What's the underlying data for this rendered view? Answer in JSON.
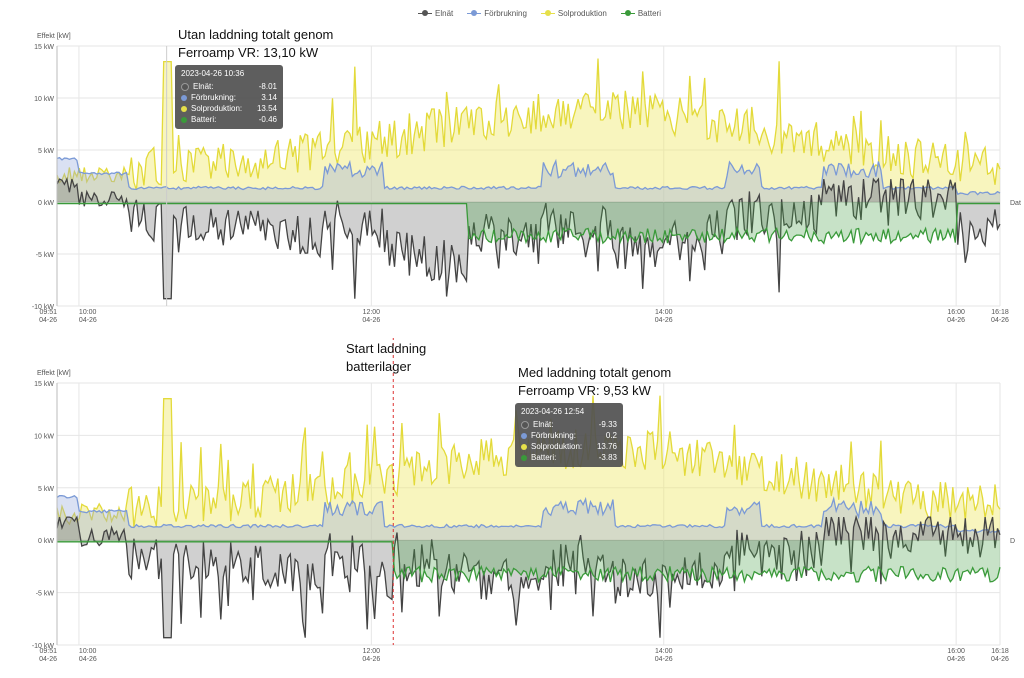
{
  "legend": [
    {
      "name": "Elnät",
      "color": "#555555"
    },
    {
      "name": "Förbrukning",
      "color": "#7b9ad6"
    },
    {
      "name": "Solproduktion",
      "color": "#e6e04a"
    },
    {
      "name": "Batteri",
      "color": "#3a9a3a"
    }
  ],
  "annotations": {
    "top_line1": "Utan laddning  totalt genom",
    "top_line2": "Ferroamp VR: 13,10 kW",
    "start_line1": "Start laddning",
    "start_line2": "batterilager",
    "bottom_line1": "Med laddning totalt genom",
    "bottom_line2": "Ferroamp VR: 9,53 kW"
  },
  "tooltips": [
    {
      "title": "2023-04-26 10:36",
      "rows": [
        {
          "name": "Elnät:",
          "value": "-8.01"
        },
        {
          "name": "Förbrukning:",
          "value": "3.14"
        },
        {
          "name": "Solproduktion:",
          "value": "13.54"
        },
        {
          "name": "Batteri:",
          "value": "-0.46"
        }
      ]
    },
    {
      "title": "2023-04-26 12:54",
      "rows": [
        {
          "name": "Elnät:",
          "value": "-9.33"
        },
        {
          "name": "Förbrukning:",
          "value": "0.2"
        },
        {
          "name": "Solproduktion:",
          "value": "13.76"
        },
        {
          "name": "Batteri:",
          "value": "-3.83"
        }
      ]
    }
  ],
  "chart_data": [
    {
      "type": "area",
      "ylabel": "Effekt [kW]",
      "ylim": [
        -10,
        15
      ],
      "yticks": [
        "15 kW",
        "10 kW",
        "5 kW",
        "0 kW",
        "-5 kW",
        "-10 kW"
      ],
      "xlim": [
        "09:51",
        "16:18"
      ],
      "xticks": [
        {
          "t": "09:51",
          "l1": "09:51",
          "l2": "04-26"
        },
        {
          "t": "10:00",
          "l1": "10:00",
          "l2": "04-26"
        },
        {
          "t": "12:00",
          "l1": "12:00",
          "l2": "04-26"
        },
        {
          "t": "14:00",
          "l1": "14:00",
          "l2": "04-26"
        },
        {
          "t": "16:00",
          "l1": "16:00",
          "l2": "04-26"
        },
        {
          "t": "16:18",
          "l1": "16:18",
          "l2": "04-26"
        }
      ],
      "xaxis_end_label": "Dat",
      "battery_charging": false,
      "series": [
        {
          "name": "Elnät",
          "color": "#555555"
        },
        {
          "name": "Förbrukning",
          "color": "#7b9ad6"
        },
        {
          "name": "Solproduktion",
          "color": "#e6e04a"
        },
        {
          "name": "Batteri",
          "color": "#3a9a3a"
        }
      ]
    },
    {
      "type": "area",
      "ylabel": "Effekt [kW]",
      "ylim": [
        -10,
        15
      ],
      "yticks": [
        "15 kW",
        "10 kW",
        "5 kW",
        "0 kW",
        "-5 kW",
        "-10 kW"
      ],
      "xlim": [
        "09:51",
        "16:18"
      ],
      "xticks": [
        {
          "t": "09:51",
          "l1": "09:51",
          "l2": "04-26"
        },
        {
          "t": "10:00",
          "l1": "10:00",
          "l2": "04-26"
        },
        {
          "t": "12:00",
          "l1": "12:00",
          "l2": "04-26"
        },
        {
          "t": "14:00",
          "l1": "14:00",
          "l2": "04-26"
        },
        {
          "t": "16:00",
          "l1": "16:00",
          "l2": "04-26"
        },
        {
          "t": "16:18",
          "l1": "16:18",
          "l2": "04-26"
        }
      ],
      "xaxis_end_label": "D",
      "battery_charging": true,
      "charging_start": "12:09",
      "series": [
        {
          "name": "Elnät",
          "color": "#555555"
        },
        {
          "name": "Förbrukning",
          "color": "#7b9ad6"
        },
        {
          "name": "Solproduktion",
          "color": "#e6e04a"
        },
        {
          "name": "Batteri",
          "color": "#3a9a3a"
        }
      ]
    }
  ]
}
